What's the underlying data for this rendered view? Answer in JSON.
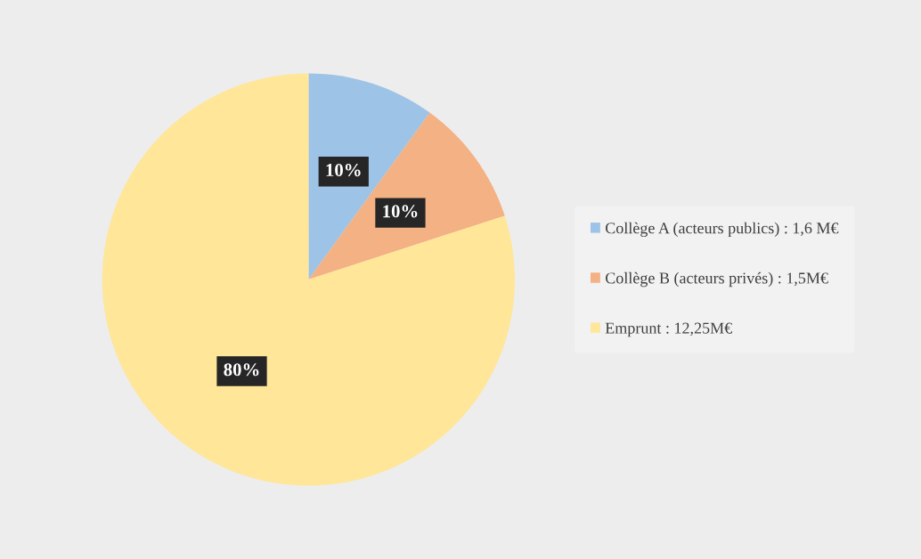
{
  "chart_data": {
    "type": "pie",
    "categories": [
      "Collège A (acteurs publics) : 1,6 M€",
      "Collège B (acteurs privés) : 1,5M€",
      "Emprunt : 12,25M€"
    ],
    "values": [
      10,
      10,
      80
    ],
    "value_labels": [
      "10%",
      "10%",
      "80%"
    ],
    "colors": [
      "#9dc3e6",
      "#f4b183",
      "#ffe699"
    ],
    "legend": "right"
  }
}
